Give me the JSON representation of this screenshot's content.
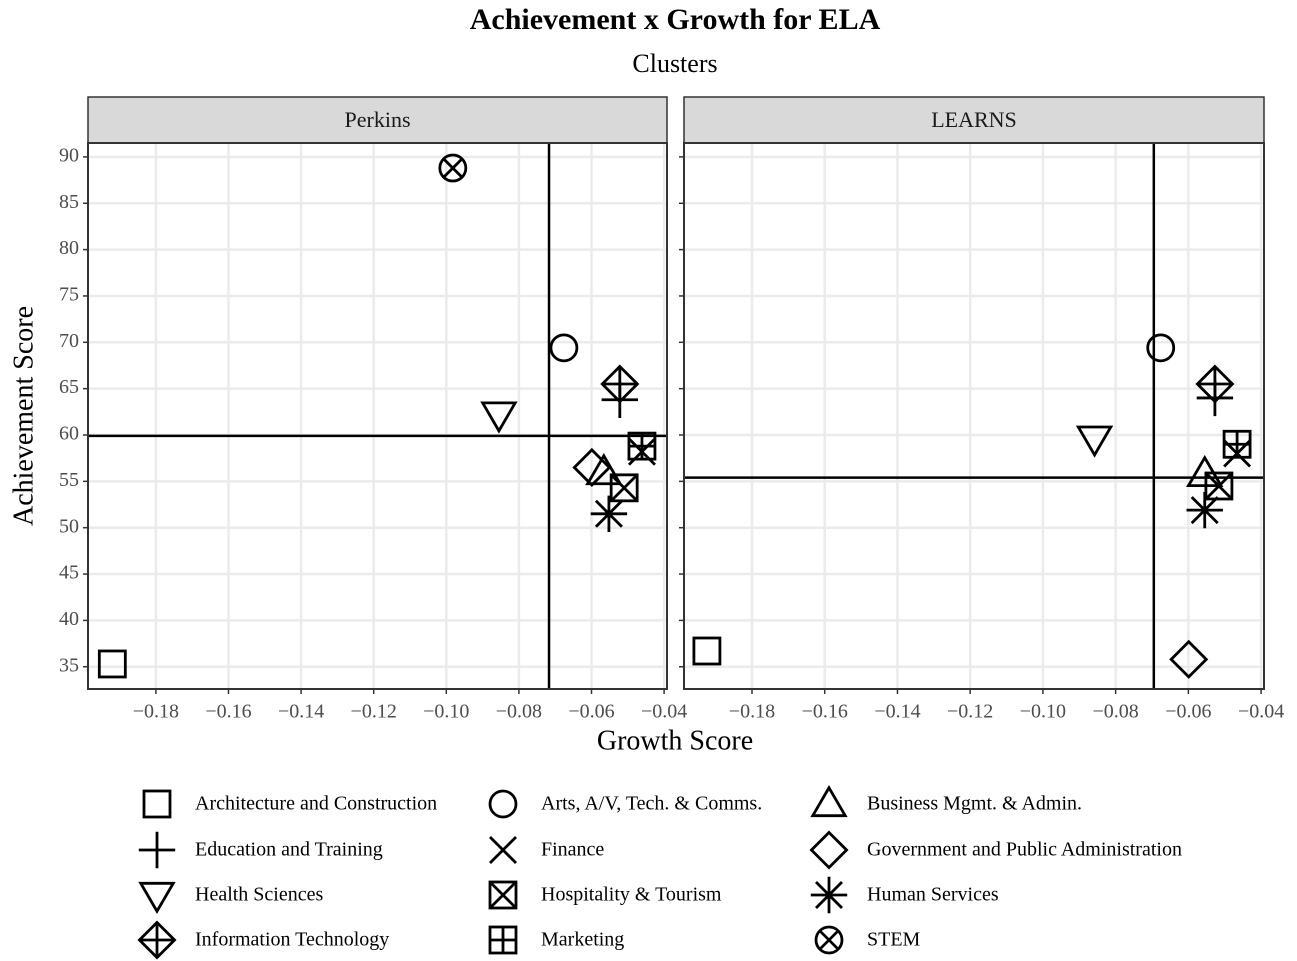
{
  "title": "Achievement x Growth for ELA",
  "subtitle": "Clusters",
  "x_label": "Growth Score",
  "y_label": "Achievement Score",
  "legend": {
    "entries": [
      "Architecture and Construction",
      "Arts, A/V, Tech. & Comms.",
      "Business Mgmt. & Admin.",
      "Education and Training",
      "Finance",
      "Government and Public Administration",
      "Health Sciences",
      "Hospitality & Tourism",
      "Human Services",
      "Information Technology",
      "Marketing",
      "STEM"
    ],
    "shapes": [
      "square",
      "circle",
      "triangle",
      "plus",
      "cross",
      "diamond",
      "triangle-down",
      "square-cross",
      "asterisk",
      "diamond-plus",
      "square-plus",
      "circle-cross"
    ],
    "color": "#000000"
  },
  "chart_data": [
    {
      "type": "scatter",
      "facet": "Perkins",
      "x": [
        -0.192,
        -0.0676,
        -0.0566,
        -0.0522,
        -0.0461,
        -0.0599,
        -0.0855,
        -0.051,
        -0.0552,
        -0.0522,
        -0.0461,
        -0.0982
      ],
      "y": [
        35.3,
        69.4,
        56.0,
        63.8,
        58.2,
        56.5,
        62.2,
        54.3,
        51.5,
        65.5,
        58.8,
        88.8
      ],
      "vline": -0.0717,
      "hline": 59.9,
      "xlim": [
        -0.1987,
        -0.0392
      ],
      "ylim": [
        32.6,
        91.5
      ],
      "xticks": [
        {
          "value": -0.18,
          "label": "−0.18"
        },
        {
          "value": -0.16,
          "label": "−0.16"
        },
        {
          "value": -0.14,
          "label": "−0.14"
        },
        {
          "value": -0.12,
          "label": "−0.12"
        },
        {
          "value": -0.1,
          "label": "−0.10"
        },
        {
          "value": -0.08,
          "label": "−0.08"
        },
        {
          "value": -0.06,
          "label": "−0.06"
        },
        {
          "value": -0.04,
          "label": "−0.04"
        }
      ],
      "yticks": [
        35,
        40,
        45,
        50,
        55,
        60,
        65,
        70,
        75,
        80,
        85,
        90
      ],
      "grid": true
    },
    {
      "type": "scatter",
      "facet": "LEARNS",
      "x": [
        -0.1924,
        -0.0676,
        -0.0555,
        -0.0527,
        -0.0466,
        -0.0599,
        -0.0858,
        -0.0516,
        -0.0555,
        -0.0527,
        -0.0466,
        null
      ],
      "y": [
        36.7,
        69.4,
        55.8,
        64.0,
        58.0,
        35.8,
        59.6,
        54.5,
        51.9,
        65.5,
        59.0,
        null
      ],
      "vline": -0.0695,
      "hline": 55.4,
      "xlim": [
        -0.1987,
        -0.0392
      ],
      "ylim": [
        32.6,
        91.5
      ],
      "xticks": [
        {
          "value": -0.18,
          "label": "−0.18"
        },
        {
          "value": -0.16,
          "label": "−0.16"
        },
        {
          "value": -0.14,
          "label": "−0.14"
        },
        {
          "value": -0.12,
          "label": "−0.12"
        },
        {
          "value": -0.1,
          "label": "−0.10"
        },
        {
          "value": -0.08,
          "label": "−0.08"
        },
        {
          "value": -0.06,
          "label": "−0.06"
        },
        {
          "value": -0.04,
          "label": "−0.04"
        }
      ],
      "yticks": [
        35,
        40,
        45,
        50,
        55,
        60,
        65,
        70,
        75,
        80,
        85,
        90
      ],
      "grid": true
    }
  ]
}
